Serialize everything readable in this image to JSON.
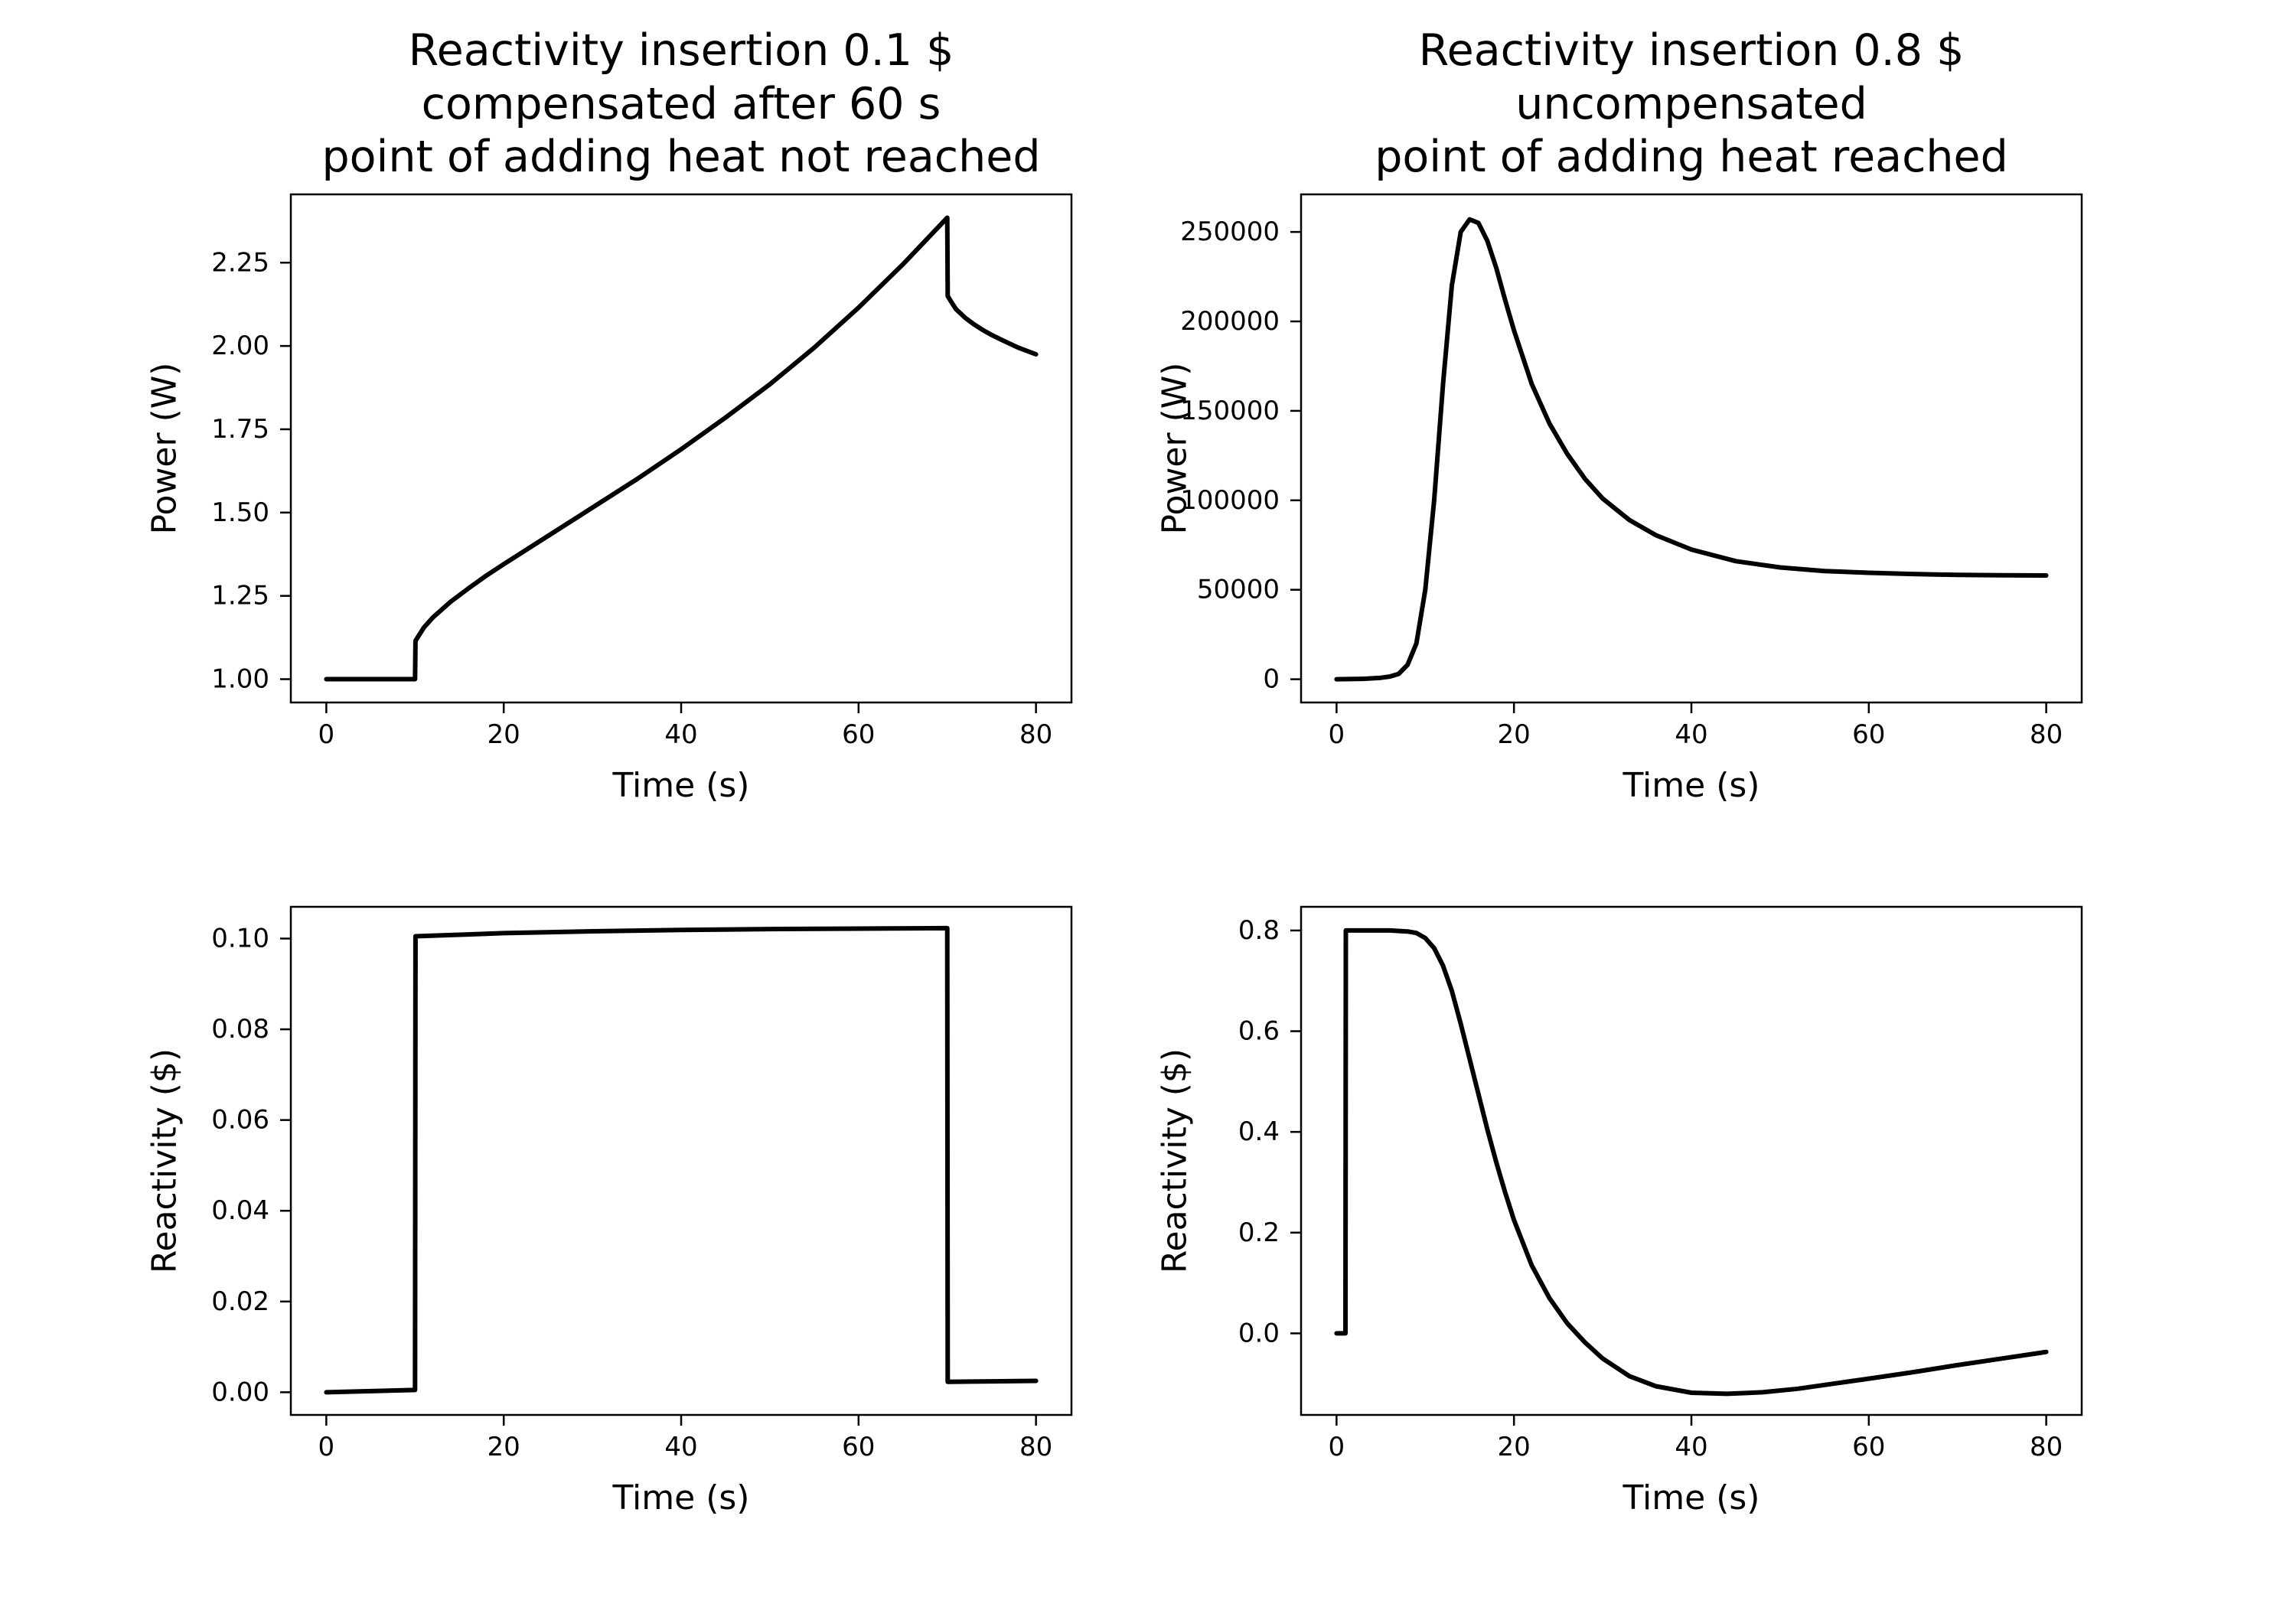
{
  "chart_data": [
    {
      "type": "line",
      "title_lines": [
        "Reactivity insertion 0.1 $",
        "compensated after 60 s",
        "point of adding heat not reached"
      ],
      "xlabel": "Time (s)",
      "ylabel": "Power (W)",
      "xlim": [
        -4,
        84
      ],
      "ylim": [
        0.93,
        2.455
      ],
      "xticks": [
        0,
        20,
        40,
        60,
        80
      ],
      "yticks": [
        1.0,
        1.25,
        1.5,
        1.75,
        2.0,
        2.25
      ],
      "ytick_labels": [
        "1.00",
        "1.25",
        "1.50",
        "1.75",
        "2.00",
        "2.25"
      ],
      "grid": false,
      "series": [
        {
          "color": "#000000",
          "x": [
            0,
            10,
            10.05,
            11,
            12,
            14,
            16,
            18,
            20,
            25,
            30,
            35,
            40,
            45,
            50,
            55,
            60,
            65,
            70,
            70.05,
            70.5,
            71,
            72,
            73,
            74,
            75,
            76,
            78,
            80
          ],
          "y": [
            1.0,
            1.0,
            1.115,
            1.155,
            1.185,
            1.232,
            1.272,
            1.31,
            1.345,
            1.43,
            1.515,
            1.6,
            1.69,
            1.785,
            1.885,
            1.995,
            2.115,
            2.245,
            2.385,
            2.15,
            2.13,
            2.11,
            2.085,
            2.065,
            2.048,
            2.033,
            2.02,
            1.995,
            1.975
          ]
        }
      ]
    },
    {
      "type": "line",
      "title_lines": [
        "Reactivity insertion 0.8 $",
        "uncompensated",
        "point of adding heat reached"
      ],
      "xlabel": "Time (s)",
      "ylabel": "Power (W)",
      "xlim": [
        -4,
        84
      ],
      "ylim": [
        -13000,
        271000
      ],
      "xticks": [
        0,
        20,
        40,
        60,
        80
      ],
      "yticks": [
        0,
        50000,
        100000,
        150000,
        200000,
        250000
      ],
      "ytick_labels": [
        "0",
        "50000",
        "100000",
        "150000",
        "200000",
        "250000"
      ],
      "grid": false,
      "series": [
        {
          "color": "#000000",
          "x": [
            0,
            3,
            5,
            6,
            7,
            8,
            9,
            10,
            11,
            12,
            13,
            14,
            15,
            16,
            17,
            18,
            19,
            20,
            22,
            24,
            26,
            28,
            30,
            33,
            36,
            40,
            45,
            50,
            55,
            60,
            65,
            70,
            75,
            80
          ],
          "y": [
            0,
            200,
            800,
            1500,
            3000,
            8000,
            20000,
            50000,
            100000,
            165000,
            220000,
            250000,
            257000,
            255000,
            245000,
            230000,
            212000,
            195000,
            165000,
            143000,
            126000,
            112000,
            101000,
            89000,
            80500,
            72500,
            66000,
            62500,
            60500,
            59500,
            58800,
            58300,
            58100,
            58000
          ]
        }
      ]
    },
    {
      "type": "line",
      "xlabel": "Time (s)",
      "ylabel": "Reactivity ($)",
      "xlim": [
        -4,
        84
      ],
      "ylim": [
        -0.005,
        0.107
      ],
      "xticks": [
        0,
        20,
        40,
        60,
        80
      ],
      "yticks": [
        0.0,
        0.02,
        0.04,
        0.06,
        0.08,
        0.1
      ],
      "ytick_labels": [
        "0.00",
        "0.02",
        "0.04",
        "0.06",
        "0.08",
        "0.10"
      ],
      "grid": false,
      "series": [
        {
          "color": "#000000",
          "x": [
            0,
            10,
            10.05,
            20,
            30,
            40,
            50,
            60,
            70,
            70.05,
            75,
            80
          ],
          "y": [
            0.0,
            0.0005,
            0.1005,
            0.1012,
            0.1016,
            0.1019,
            0.1021,
            0.1022,
            0.1023,
            0.0023,
            0.0024,
            0.0025
          ]
        }
      ]
    },
    {
      "type": "line",
      "xlabel": "Time (s)",
      "ylabel": "Reactivity ($)",
      "xlim": [
        -4,
        84
      ],
      "ylim": [
        -0.162,
        0.847
      ],
      "xticks": [
        0,
        20,
        40,
        60,
        80
      ],
      "yticks": [
        0.0,
        0.2,
        0.4,
        0.6,
        0.8
      ],
      "ytick_labels": [
        "0.0",
        "0.2",
        "0.4",
        "0.6",
        "0.8"
      ],
      "grid": false,
      "series": [
        {
          "color": "#000000",
          "x": [
            0,
            1,
            1.05,
            3,
            6,
            8,
            9,
            10,
            11,
            12,
            13,
            14,
            15,
            16,
            17,
            18,
            19,
            20,
            22,
            24,
            26,
            28,
            30,
            33,
            36,
            40,
            44,
            48,
            52,
            56,
            60,
            65,
            70,
            75,
            80
          ],
          "y": [
            0.0,
            0.0,
            0.8,
            0.8,
            0.8,
            0.798,
            0.795,
            0.785,
            0.765,
            0.73,
            0.68,
            0.615,
            0.545,
            0.475,
            0.405,
            0.34,
            0.28,
            0.225,
            0.135,
            0.07,
            0.02,
            -0.018,
            -0.05,
            -0.085,
            -0.105,
            -0.118,
            -0.12,
            -0.117,
            -0.11,
            -0.1,
            -0.09,
            -0.077,
            -0.063,
            -0.05,
            -0.037
          ]
        }
      ]
    }
  ]
}
